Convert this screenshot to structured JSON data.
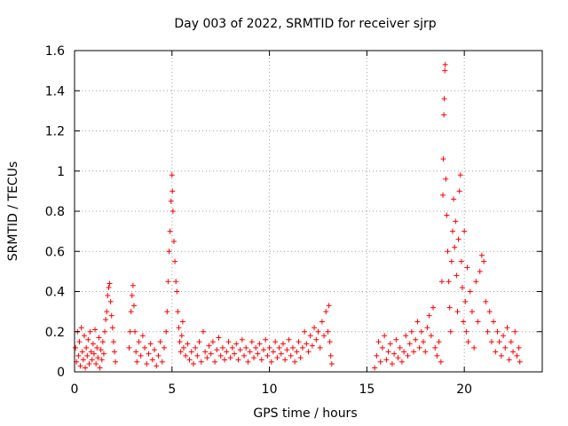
{
  "chart_data": {
    "type": "scatter",
    "title": "Day 003 of 2022, SRMTID for receiver sjrp",
    "xlabel": "GPS time / hours",
    "ylabel": "SRMTID / TECUs",
    "xlim": [
      0,
      24
    ],
    "ylim": [
      0,
      1.6
    ],
    "xticks": [
      0,
      5,
      10,
      15,
      20
    ],
    "xtick_labels": [
      "0",
      "5",
      "10",
      "15",
      "20"
    ],
    "yticks": [
      0,
      0.2,
      0.4,
      0.6,
      0.8,
      1.0,
      1.2,
      1.4,
      1.6
    ],
    "ytick_labels": [
      "0",
      "0.2",
      "0.4",
      "0.6",
      "0.8",
      "1",
      "1.2",
      "1.4",
      "1.6"
    ],
    "grid": true,
    "marker": "+",
    "color": "#ff0000",
    "series": [
      {
        "name": "sjrp",
        "points": [
          [
            0.05,
            0.12
          ],
          [
            0.1,
            0.05
          ],
          [
            0.15,
            0.2
          ],
          [
            0.2,
            0.08
          ],
          [
            0.25,
            0.15
          ],
          [
            0.3,
            0.03
          ],
          [
            0.35,
            0.22
          ],
          [
            0.4,
            0.1
          ],
          [
            0.45,
            0.06
          ],
          [
            0.5,
            0.18
          ],
          [
            0.55,
            0.02
          ],
          [
            0.6,
            0.12
          ],
          [
            0.65,
            0.08
          ],
          [
            0.7,
            0.16
          ],
          [
            0.75,
            0.04
          ],
          [
            0.8,
            0.2
          ],
          [
            0.85,
            0.1
          ],
          [
            0.9,
            0.06
          ],
          [
            0.95,
            0.14
          ],
          [
            1.0,
            0.09
          ],
          [
            1.05,
            0.21
          ],
          [
            1.1,
            0.04
          ],
          [
            1.15,
            0.12
          ],
          [
            1.2,
            0.07
          ],
          [
            1.25,
            0.17
          ],
          [
            1.3,
            0.02
          ],
          [
            1.35,
            0.11
          ],
          [
            1.4,
            0.06
          ],
          [
            1.45,
            0.15
          ],
          [
            1.5,
            0.09
          ],
          [
            1.55,
            0.2
          ],
          [
            1.6,
            0.26
          ],
          [
            1.65,
            0.3
          ],
          [
            1.7,
            0.38
          ],
          [
            1.75,
            0.42
          ],
          [
            1.8,
            0.44
          ],
          [
            1.85,
            0.35
          ],
          [
            1.9,
            0.28
          ],
          [
            1.95,
            0.22
          ],
          [
            2.0,
            0.15
          ],
          [
            2.05,
            0.1
          ],
          [
            2.1,
            0.05
          ],
          [
            2.8,
            0.12
          ],
          [
            2.85,
            0.2
          ],
          [
            2.9,
            0.3
          ],
          [
            2.95,
            0.38
          ],
          [
            3.0,
            0.43
          ],
          [
            3.05,
            0.33
          ],
          [
            3.1,
            0.2
          ],
          [
            3.15,
            0.1
          ],
          [
            3.2,
            0.05
          ],
          [
            3.3,
            0.15
          ],
          [
            3.4,
            0.08
          ],
          [
            3.5,
            0.18
          ],
          [
            3.6,
            0.12
          ],
          [
            3.7,
            0.04
          ],
          [
            3.8,
            0.09
          ],
          [
            3.9,
            0.14
          ],
          [
            4.0,
            0.06
          ],
          [
            4.1,
            0.11
          ],
          [
            4.2,
            0.03
          ],
          [
            4.3,
            0.08
          ],
          [
            4.4,
            0.15
          ],
          [
            4.5,
            0.05
          ],
          [
            4.6,
            0.12
          ],
          [
            4.7,
            0.2
          ],
          [
            4.75,
            0.3
          ],
          [
            4.8,
            0.45
          ],
          [
            4.85,
            0.6
          ],
          [
            4.9,
            0.7
          ],
          [
            4.95,
            0.85
          ],
          [
            5.0,
            0.98
          ],
          [
            5.02,
            0.9
          ],
          [
            5.05,
            0.8
          ],
          [
            5.1,
            0.65
          ],
          [
            5.15,
            0.55
          ],
          [
            5.2,
            0.45
          ],
          [
            5.25,
            0.4
          ],
          [
            5.3,
            0.3
          ],
          [
            5.35,
            0.22
          ],
          [
            5.4,
            0.15
          ],
          [
            5.45,
            0.1
          ],
          [
            5.5,
            0.18
          ],
          [
            5.55,
            0.25
          ],
          [
            5.6,
            0.12
          ],
          [
            5.7,
            0.08
          ],
          [
            5.8,
            0.14
          ],
          [
            5.9,
            0.06
          ],
          [
            6.0,
            0.1
          ],
          [
            6.1,
            0.04
          ],
          [
            6.2,
            0.12
          ],
          [
            6.3,
            0.08
          ],
          [
            6.4,
            0.15
          ],
          [
            6.5,
            0.05
          ],
          [
            6.6,
            0.2
          ],
          [
            6.7,
            0.1
          ],
          [
            6.8,
            0.07
          ],
          [
            6.9,
            0.13
          ],
          [
            7.0,
            0.09
          ],
          [
            7.1,
            0.15
          ],
          [
            7.2,
            0.05
          ],
          [
            7.3,
            0.11
          ],
          [
            7.4,
            0.17
          ],
          [
            7.5,
            0.08
          ],
          [
            7.6,
            0.12
          ],
          [
            7.7,
            0.06
          ],
          [
            7.8,
            0.1
          ],
          [
            7.9,
            0.15
          ],
          [
            8.0,
            0.07
          ],
          [
            8.1,
            0.12
          ],
          [
            8.2,
            0.09
          ],
          [
            8.3,
            0.14
          ],
          [
            8.4,
            0.06
          ],
          [
            8.5,
            0.11
          ],
          [
            8.6,
            0.16
          ],
          [
            8.7,
            0.08
          ],
          [
            8.8,
            0.12
          ],
          [
            8.9,
            0.05
          ],
          [
            9.0,
            0.1
          ],
          [
            9.1,
            0.15
          ],
          [
            9.2,
            0.07
          ],
          [
            9.3,
            0.12
          ],
          [
            9.4,
            0.09
          ],
          [
            9.5,
            0.14
          ],
          [
            9.6,
            0.06
          ],
          [
            9.7,
            0.11
          ],
          [
            9.8,
            0.16
          ],
          [
            9.9,
            0.08
          ],
          [
            10.0,
            0.12
          ],
          [
            10.1,
            0.05
          ],
          [
            10.2,
            0.1
          ],
          [
            10.3,
            0.15
          ],
          [
            10.4,
            0.07
          ],
          [
            10.5,
            0.12
          ],
          [
            10.6,
            0.09
          ],
          [
            10.7,
            0.14
          ],
          [
            10.8,
            0.06
          ],
          [
            10.9,
            0.11
          ],
          [
            11.0,
            0.16
          ],
          [
            11.1,
            0.08
          ],
          [
            11.2,
            0.12
          ],
          [
            11.3,
            0.05
          ],
          [
            11.4,
            0.1
          ],
          [
            11.5,
            0.15
          ],
          [
            11.6,
            0.07
          ],
          [
            11.7,
            0.12
          ],
          [
            11.8,
            0.2
          ],
          [
            11.9,
            0.14
          ],
          [
            12.0,
            0.1
          ],
          [
            12.1,
            0.18
          ],
          [
            12.2,
            0.13
          ],
          [
            12.3,
            0.22
          ],
          [
            12.4,
            0.16
          ],
          [
            12.5,
            0.2
          ],
          [
            12.6,
            0.12
          ],
          [
            12.7,
            0.25
          ],
          [
            12.8,
            0.18
          ],
          [
            12.9,
            0.3
          ],
          [
            13.0,
            0.2
          ],
          [
            13.05,
            0.33
          ],
          [
            13.1,
            0.15
          ],
          [
            13.15,
            0.08
          ],
          [
            13.2,
            0.04
          ],
          [
            15.4,
            0.02
          ],
          [
            15.5,
            0.08
          ],
          [
            15.6,
            0.15
          ],
          [
            15.7,
            0.05
          ],
          [
            15.8,
            0.12
          ],
          [
            15.9,
            0.18
          ],
          [
            16.0,
            0.06
          ],
          [
            16.1,
            0.1
          ],
          [
            16.2,
            0.14
          ],
          [
            16.3,
            0.04
          ],
          [
            16.4,
            0.09
          ],
          [
            16.5,
            0.16
          ],
          [
            16.6,
            0.07
          ],
          [
            16.7,
            0.12
          ],
          [
            16.8,
            0.05
          ],
          [
            16.9,
            0.1
          ],
          [
            17.0,
            0.18
          ],
          [
            17.1,
            0.08
          ],
          [
            17.2,
            0.14
          ],
          [
            17.3,
            0.2
          ],
          [
            17.4,
            0.1
          ],
          [
            17.5,
            0.16
          ],
          [
            17.6,
            0.25
          ],
          [
            17.7,
            0.12
          ],
          [
            17.8,
            0.2
          ],
          [
            17.9,
            0.15
          ],
          [
            18.0,
            0.1
          ],
          [
            18.1,
            0.22
          ],
          [
            18.2,
            0.28
          ],
          [
            18.3,
            0.18
          ],
          [
            18.4,
            0.32
          ],
          [
            18.5,
            0.12
          ],
          [
            18.6,
            0.08
          ],
          [
            18.7,
            0.15
          ],
          [
            18.8,
            0.05
          ],
          [
            18.85,
            0.45
          ],
          [
            18.9,
            0.88
          ],
          [
            18.92,
            1.06
          ],
          [
            18.95,
            1.28
          ],
          [
            18.97,
            1.36
          ],
          [
            19.0,
            1.5
          ],
          [
            19.02,
            1.53
          ],
          [
            19.05,
            0.96
          ],
          [
            19.1,
            0.78
          ],
          [
            19.15,
            0.6
          ],
          [
            19.2,
            0.45
          ],
          [
            19.25,
            0.32
          ],
          [
            19.3,
            0.2
          ],
          [
            19.35,
            0.55
          ],
          [
            19.4,
            0.7
          ],
          [
            19.45,
            0.86
          ],
          [
            19.5,
            0.62
          ],
          [
            19.55,
            0.75
          ],
          [
            19.6,
            0.48
          ],
          [
            19.65,
            0.3
          ],
          [
            19.7,
            0.66
          ],
          [
            19.75,
            0.9
          ],
          [
            19.8,
            0.98
          ],
          [
            19.85,
            0.55
          ],
          [
            19.9,
            0.42
          ],
          [
            19.95,
            0.25
          ],
          [
            20.0,
            0.7
          ],
          [
            20.05,
            0.35
          ],
          [
            20.1,
            0.2
          ],
          [
            20.15,
            0.52
          ],
          [
            20.2,
            0.15
          ],
          [
            20.3,
            0.4
          ],
          [
            20.4,
            0.3
          ],
          [
            20.5,
            0.12
          ],
          [
            20.6,
            0.45
          ],
          [
            20.7,
            0.25
          ],
          [
            20.8,
            0.5
          ],
          [
            20.9,
            0.58
          ],
          [
            21.0,
            0.55
          ],
          [
            21.1,
            0.35
          ],
          [
            21.2,
            0.2
          ],
          [
            21.3,
            0.3
          ],
          [
            21.4,
            0.15
          ],
          [
            21.5,
            0.25
          ],
          [
            21.6,
            0.1
          ],
          [
            21.7,
            0.2
          ],
          [
            21.8,
            0.15
          ],
          [
            21.9,
            0.08
          ],
          [
            22.0,
            0.18
          ],
          [
            22.1,
            0.12
          ],
          [
            22.2,
            0.22
          ],
          [
            22.3,
            0.06
          ],
          [
            22.4,
            0.15
          ],
          [
            22.5,
            0.1
          ],
          [
            22.6,
            0.2
          ],
          [
            22.7,
            0.08
          ],
          [
            22.8,
            0.12
          ],
          [
            22.85,
            0.05
          ]
        ]
      }
    ]
  }
}
